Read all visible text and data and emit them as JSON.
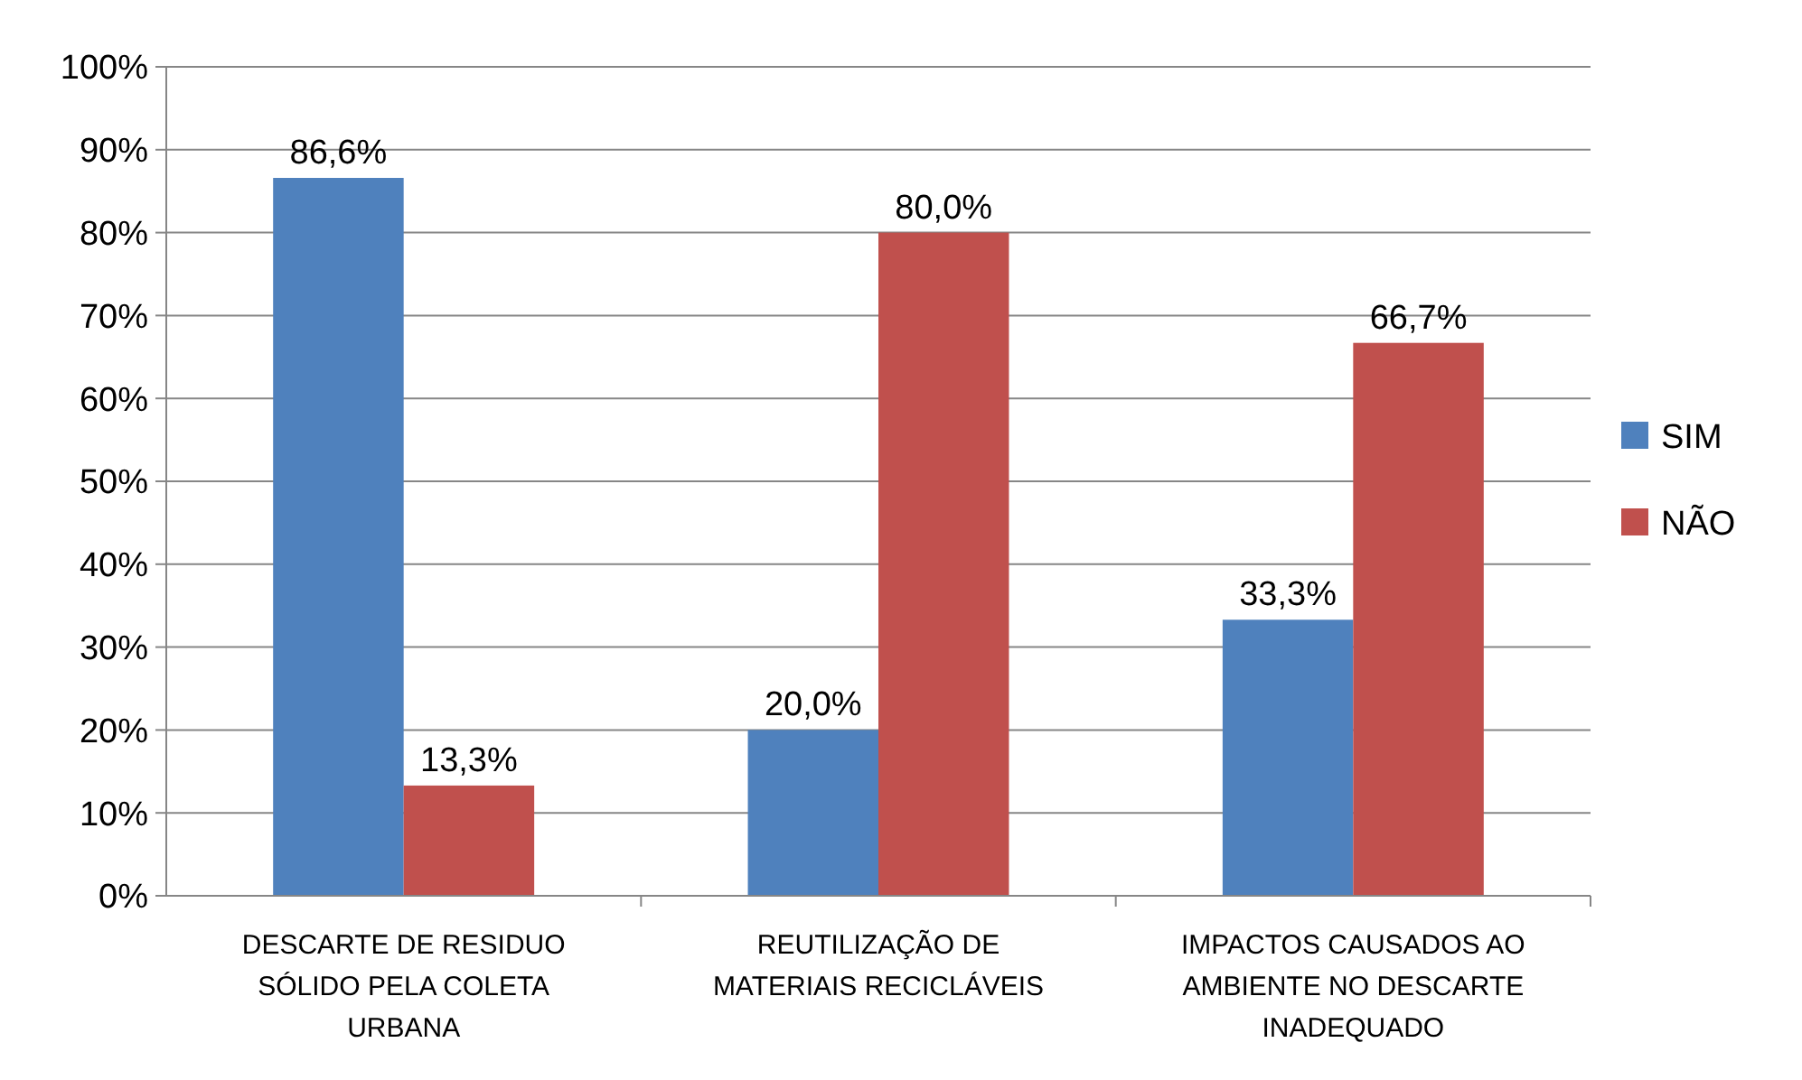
{
  "chart_data": {
    "type": "bar",
    "categories": [
      "DESCARTE DE RESIDUO SÓLIDO PELA COLETA URBANA",
      "REUTILIZAÇÃO DE MATERIAIS RECICLÁVEIS",
      "IMPACTOS CAUSADOS AO AMBIENTE NO DESCARTE INADEQUADO"
    ],
    "series": [
      {
        "name": "SIM",
        "color": "#4f81bd",
        "values": [
          86.6,
          20.0,
          33.3
        ],
        "value_labels": [
          "86,6%",
          "20,0%",
          "33,3%"
        ]
      },
      {
        "name": "NÃO",
        "color": "#c0504d",
        "values": [
          13.3,
          80.0,
          66.7
        ],
        "value_labels": [
          "13,3%",
          "80,0%",
          "66,7%"
        ]
      }
    ],
    "ylim": [
      0,
      100
    ],
    "yticks": [
      {
        "value": 0,
        "label": "0%"
      },
      {
        "value": 10,
        "label": "10%"
      },
      {
        "value": 20,
        "label": "20%"
      },
      {
        "value": 30,
        "label": "30%"
      },
      {
        "value": 40,
        "label": "40%"
      },
      {
        "value": 50,
        "label": "50%"
      },
      {
        "value": 60,
        "label": "60%"
      },
      {
        "value": 70,
        "label": "70%"
      },
      {
        "value": 80,
        "label": "80%"
      },
      {
        "value": 90,
        "label": "90%"
      },
      {
        "value": 100,
        "label": "100%"
      }
    ],
    "grid": "y",
    "legend": "right"
  }
}
